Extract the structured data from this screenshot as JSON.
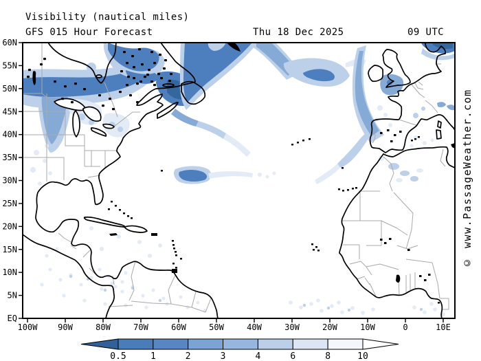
{
  "header": {
    "title": "Visibility (nautical miles)",
    "model_line": "GFS 015 Hour Forecast",
    "valid_date": "Thu 18 Dec 2025",
    "valid_time": "09 UTC"
  },
  "watermark": "© www.PassageWeather.com",
  "map": {
    "lat_labels": [
      "60N",
      "55N",
      "50N",
      "45N",
      "40N",
      "35N",
      "30N",
      "25N",
      "20N",
      "15N",
      "10N",
      "5N",
      "EQ"
    ],
    "lon_labels": [
      "100W",
      "90W",
      "80W",
      "70W",
      "60W",
      "50W",
      "40W",
      "30W",
      "20W",
      "10W",
      "0",
      "10E"
    ]
  },
  "colors": {
    "background": "#ffffff",
    "coastline": "#000000",
    "political_border": "#a9a9a9",
    "text": "#000000",
    "visibility_shades": {
      "darkest": "#35679f",
      "dark": "#4d7fbe",
      "medium": "#85aad6",
      "light": "#bdd0ea",
      "faint": "#e3ebf6"
    }
  },
  "chart_data": {
    "type": "heatmap",
    "title": "Visibility (nautical miles)",
    "subtitle": "GFS 015 Hour Forecast — Thu 18 Dec 2025 09 UTC",
    "region": "North Atlantic, 100W–10E, EQ–60N",
    "x_axis_ticks": [
      "100W",
      "90W",
      "80W",
      "70W",
      "60W",
      "50W",
      "40W",
      "30W",
      "20W",
      "10W",
      "0",
      "10E"
    ],
    "y_axis_ticks": [
      "EQ",
      "5N",
      "10N",
      "15N",
      "20N",
      "25N",
      "30N",
      "35N",
      "40N",
      "45N",
      "50N",
      "55N",
      "60N"
    ],
    "legend_position": "bottom",
    "scale_boundaries_nm": [
      0.5,
      1,
      2,
      3,
      4,
      6,
      8,
      10
    ],
    "low_visibility_features": [
      "band of 0.5-2 nm visibility across southern Canada near 50N (100W-75W)",
      "dense 0.5-1 nm wedge over Newfoundland extending NE to 60N between 60W and 40W",
      "patchy 1-3 nm arc in mid-Atlantic near 50N 30W",
      "2-4 nm band west of Ireland/UK trailing SW toward the Azores",
      "0.5-1 nm patch over southern Norway at top right",
      "3-8 nm patches over Atlas mountains (Morocco/Algeria) and the Alps",
      "small 1-3 nm blob near 30N 55W with faint trail eastward",
      "faint 8-10 nm speckles along the ITCZ near the equator and over northern South America"
    ]
  },
  "colorbar": {
    "tick_labels": [
      "0.5",
      "1",
      "2",
      "3",
      "4",
      "6",
      "8",
      "10"
    ],
    "below_min_color": "#326098",
    "segment_colors": [
      "#4a7cba",
      "#5786c3",
      "#7ba3d3",
      "#97b6dd",
      "#bccfe9",
      "#dbe5f3",
      "#f3f6fb"
    ],
    "above_max_color": "#ffffff",
    "outline_color": "#000000"
  }
}
